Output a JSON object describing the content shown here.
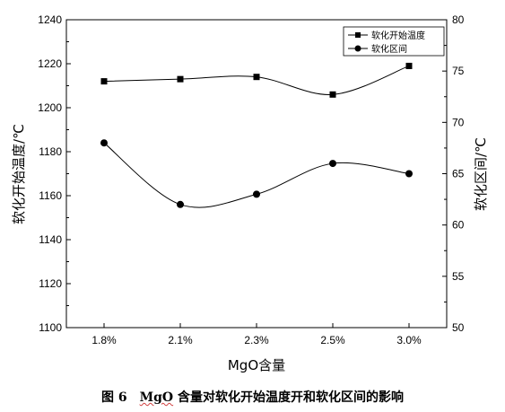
{
  "chart_data": {
    "type": "line",
    "categories": [
      "1.8%",
      "2.1%",
      "2.3%",
      "2.5%",
      "3.0%"
    ],
    "xlabel": "MgO含量",
    "y_left": {
      "label": "软化开始温度/℃",
      "ylim": [
        1100,
        1240
      ],
      "ticks": [
        "1100",
        "1120",
        "1140",
        "1160",
        "1180",
        "1200",
        "1220",
        "1240"
      ]
    },
    "y_right": {
      "label": "软化区间/℃",
      "ylim": [
        50,
        80
      ],
      "ticks": [
        "50",
        "55",
        "60",
        "65",
        "70",
        "75",
        "80"
      ]
    },
    "series": [
      {
        "name": "软化开始温度",
        "axis": "left",
        "marker": "square",
        "values": [
          1212,
          1213,
          1214,
          1206,
          1219
        ]
      },
      {
        "name": "软化区间",
        "axis": "right",
        "marker": "circle",
        "values": [
          68,
          62,
          63,
          66,
          65
        ]
      }
    ],
    "legend_position": "top-right",
    "grid": false,
    "smooth": true,
    "colors": {
      "line": "#000000",
      "marker": "#000000"
    }
  },
  "caption": {
    "figure_label": "图 6",
    "mgo": "MgO",
    "text": " 含量对软化开始温度开和软化区间的影响"
  }
}
